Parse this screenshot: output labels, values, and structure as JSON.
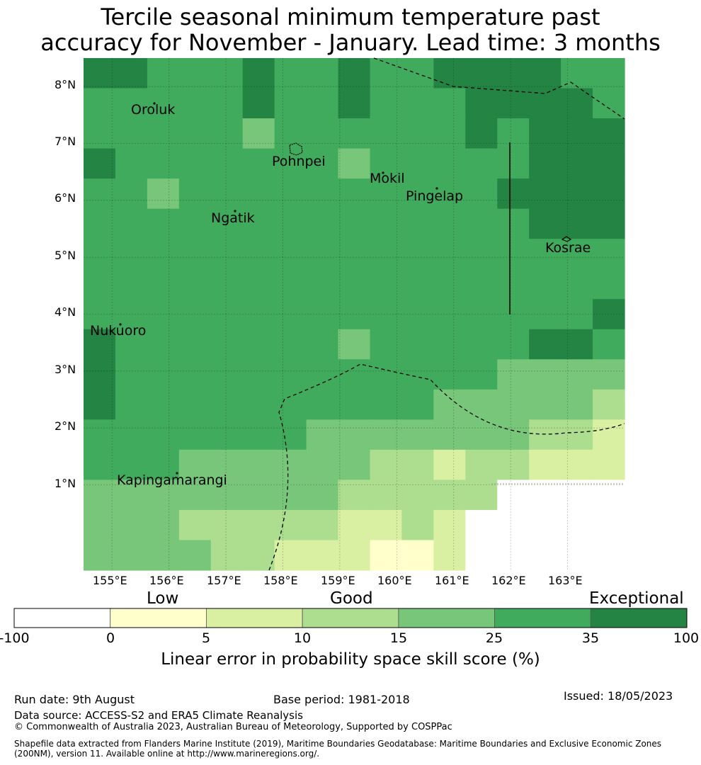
{
  "title": {
    "line1": "Tercile seasonal minimum temperature past",
    "line2": "accuracy for November - January. Lead time: 3 months"
  },
  "map": {
    "lon_range": [
      154.5,
      164.0
    ],
    "lat_range": [
      -0.5,
      8.5
    ],
    "lat_ticks": [
      "8°N",
      "7°N",
      "6°N",
      "5°N",
      "4°N",
      "3°N",
      "2°N",
      "1°N"
    ],
    "lon_ticks": [
      "155°E",
      "156°E",
      "157°E",
      "158°E",
      "159°E",
      "160°E",
      "161°E",
      "162°E",
      "163°E"
    ],
    "islands": [
      {
        "name": "Oroluk"
      },
      {
        "name": "Pohnpei"
      },
      {
        "name": "Mokil"
      },
      {
        "name": "Pingelap"
      },
      {
        "name": "Ngatik"
      },
      {
        "name": "Kosrae"
      },
      {
        "name": "Nukuoro"
      },
      {
        "name": "Kapingamarangi"
      }
    ],
    "skill_grid": [
      [
        35,
        35,
        25,
        25,
        25,
        35,
        25,
        25,
        35,
        25,
        25,
        35,
        35,
        35,
        35,
        25,
        25
      ],
      [
        25,
        25,
        25,
        25,
        25,
        35,
        25,
        25,
        35,
        25,
        25,
        25,
        35,
        35,
        35,
        35,
        25
      ],
      [
        25,
        25,
        25,
        25,
        25,
        15,
        25,
        25,
        25,
        25,
        25,
        25,
        35,
        25,
        35,
        35,
        35
      ],
      [
        35,
        25,
        25,
        25,
        25,
        25,
        25,
        25,
        15,
        25,
        25,
        25,
        25,
        25,
        35,
        35,
        35
      ],
      [
        25,
        25,
        15,
        25,
        25,
        25,
        25,
        25,
        25,
        25,
        25,
        25,
        25,
        35,
        35,
        35,
        35
      ],
      [
        25,
        25,
        25,
        25,
        25,
        25,
        25,
        25,
        25,
        25,
        25,
        25,
        25,
        25,
        35,
        35,
        35
      ],
      [
        25,
        25,
        25,
        25,
        25,
        25,
        25,
        25,
        25,
        25,
        25,
        25,
        25,
        25,
        25,
        25,
        25
      ],
      [
        25,
        25,
        25,
        25,
        25,
        25,
        25,
        25,
        25,
        25,
        25,
        25,
        25,
        25,
        25,
        25,
        25
      ],
      [
        25,
        25,
        25,
        25,
        25,
        25,
        25,
        25,
        25,
        25,
        25,
        25,
        25,
        25,
        25,
        25,
        35
      ],
      [
        35,
        25,
        25,
        25,
        25,
        25,
        25,
        25,
        15,
        25,
        25,
        25,
        25,
        25,
        35,
        35,
        25
      ],
      [
        35,
        25,
        25,
        25,
        25,
        25,
        25,
        25,
        25,
        25,
        25,
        25,
        25,
        15,
        15,
        15,
        15
      ],
      [
        35,
        25,
        25,
        25,
        25,
        25,
        25,
        25,
        25,
        25,
        25,
        15,
        15,
        15,
        15,
        15,
        10
      ],
      [
        25,
        25,
        25,
        25,
        25,
        25,
        25,
        15,
        15,
        15,
        15,
        15,
        15,
        15,
        10,
        10,
        5
      ],
      [
        25,
        25,
        25,
        15,
        15,
        15,
        15,
        15,
        15,
        10,
        10,
        5,
        10,
        10,
        5,
        5,
        5
      ],
      [
        15,
        15,
        15,
        15,
        15,
        15,
        15,
        15,
        10,
        10,
        10,
        10,
        10,
        -100,
        -100,
        -100,
        -100
      ],
      [
        15,
        15,
        15,
        10,
        10,
        10,
        10,
        10,
        5,
        5,
        10,
        5,
        -100,
        -100,
        -100,
        -100,
        -100
      ],
      [
        15,
        15,
        15,
        15,
        10,
        10,
        5,
        5,
        5,
        0,
        0,
        5,
        -100,
        -100,
        -100,
        -100,
        -100
      ]
    ]
  },
  "colorbar": {
    "headers": {
      "low": "Low",
      "good": "Good",
      "exceptional": "Exceptional"
    },
    "ticks": [
      "-100",
      "0",
      "5",
      "10",
      "15",
      "25",
      "35",
      "100"
    ],
    "colors": [
      "#ffffff",
      "#ffffcc",
      "#d9f0a3",
      "#addd8e",
      "#78c679",
      "#41ab5d",
      "#238443"
    ],
    "caption": "Linear error in probability space skill score (%)"
  },
  "footer": {
    "run_date": "Run date: 9th August",
    "base_period": "Base period: 1981-2018",
    "issued": "Issued: 18/05/2023",
    "data_source": "Data source: ACCESS-S2 and ERA5 Climate Reanalysis",
    "copyright": "© Commonwealth of Australia 2023, Australian Bureau of Meteorology, Supported by COSPPac",
    "shapefile_line1": "Shapefile data extracted from Flanders Marine Institute (2019), Maritime Boundaries Geodatabase: Maritime Boundaries and Exclusive Economic Zones",
    "shapefile_line2": "(200NM), version 11. Available online at http://www.marineregions.org/."
  }
}
